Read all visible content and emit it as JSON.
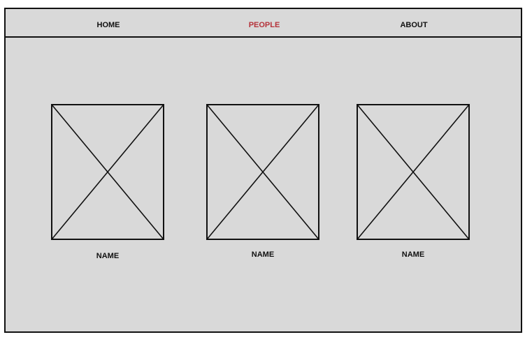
{
  "nav": {
    "items": [
      {
        "label": "HOME",
        "active": false
      },
      {
        "label": "PEOPLE",
        "active": true
      },
      {
        "label": "ABOUT",
        "active": false
      }
    ]
  },
  "colors": {
    "background": "#d9d9d9",
    "border": "#111111",
    "active_nav": "#b5323a"
  },
  "people": [
    {
      "name": "NAME",
      "image_icon": "image-placeholder-icon"
    },
    {
      "name": "NAME",
      "image_icon": "image-placeholder-icon"
    },
    {
      "name": "NAME",
      "image_icon": "image-placeholder-icon"
    }
  ]
}
